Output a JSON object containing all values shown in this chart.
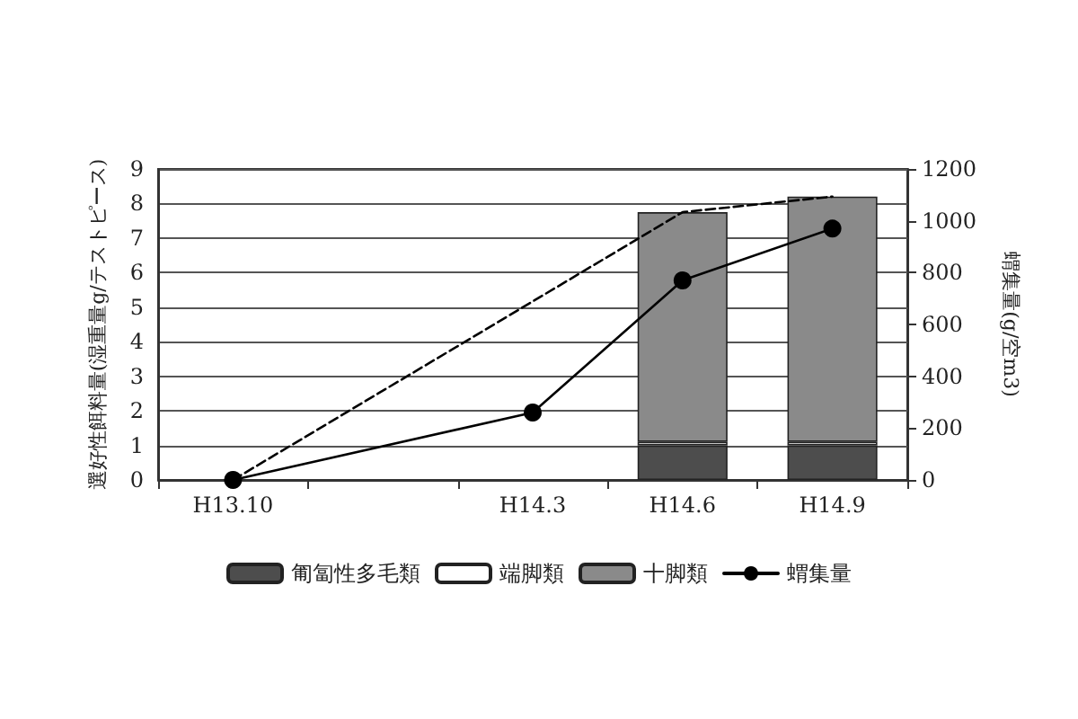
{
  "chart_data": {
    "type": "bar",
    "stacked": true,
    "categories": [
      "H13.10",
      null,
      "H14.3",
      "H14.6",
      "H14.9"
    ],
    "ylabel": "選好性餌料量(湿重量g/テストピース)",
    "y2label": "蝟集量(g/空m3)",
    "ylim": [
      0,
      9
    ],
    "yticks": [
      0,
      1,
      2,
      3,
      4,
      5,
      6,
      7,
      8,
      9
    ],
    "y2lim": [
      0,
      1200
    ],
    "y2ticks": [
      0,
      200,
      400,
      600,
      800,
      1000,
      1200
    ],
    "grid": "y",
    "legend": "bottom",
    "series": [
      {
        "name": "匍匐性多毛類",
        "color": "#4d4d4d",
        "values": [
          null,
          null,
          null,
          1.0,
          1.0
        ]
      },
      {
        "name": "端脚類",
        "color": "#ffffff",
        "values": [
          null,
          null,
          null,
          0.1,
          0.1
        ]
      },
      {
        "name": "十脚類",
        "color": "#8a8a8a",
        "values": [
          null,
          null,
          null,
          6.65,
          7.1
        ]
      },
      {
        "type": "line",
        "color": "#000000",
        "line_style": "dashed",
        "marker": "none",
        "values": [
          0,
          null,
          null,
          7.75,
          8.2
        ]
      },
      {
        "name": "蝟集量",
        "type": "line",
        "axis": "y2",
        "color": "#000000",
        "line_style": "solid",
        "marker": "circle",
        "values": [
          0,
          null,
          260,
          770,
          970
        ]
      }
    ]
  }
}
